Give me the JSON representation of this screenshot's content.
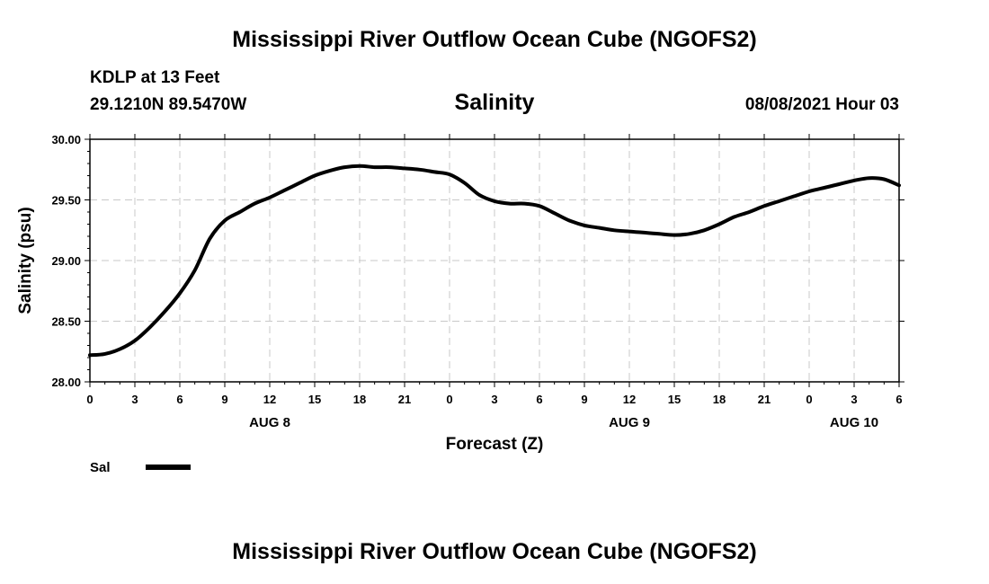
{
  "header": {
    "title": "Mississippi River Outflow Ocean Cube (NGOFS2)",
    "station": "KDLP at 13 Feet",
    "coords": "29.1210N  89.5470W",
    "variable": "Salinity",
    "datetime": "08/08/2021 Hour 03"
  },
  "footer": {
    "title": "Mississippi River Outflow Ocean Cube (NGOFS2)"
  },
  "chart_data": {
    "type": "line",
    "title": "Salinity",
    "xlabel": "Forecast (Z)",
    "ylabel": "Salinity (psu)",
    "ylim": [
      28.0,
      30.0
    ],
    "xlim": [
      0,
      54
    ],
    "y_ticks": [
      "28.00",
      "28.50",
      "29.00",
      "29.50",
      "30.00"
    ],
    "x_ticks": [
      "0",
      "3",
      "6",
      "9",
      "12",
      "15",
      "18",
      "21",
      "0",
      "3",
      "6",
      "9",
      "12",
      "15",
      "18",
      "21",
      "0",
      "3",
      "6"
    ],
    "date_labels": [
      {
        "label": "AUG 8",
        "hour": 12
      },
      {
        "label": "AUG 9",
        "hour": 36
      },
      {
        "label": "AUG 10",
        "hour": 51
      }
    ],
    "grid": true,
    "legend": {
      "placement": "bottom-left",
      "entries": [
        "Sal"
      ]
    },
    "series": [
      {
        "name": "Sal",
        "color": "#000000",
        "x": [
          0,
          1,
          2,
          3,
          4,
          5,
          6,
          7,
          8,
          9,
          10,
          11,
          12,
          13,
          14,
          15,
          16,
          17,
          18,
          19,
          20,
          21,
          22,
          23,
          24,
          25,
          26,
          27,
          28,
          29,
          30,
          31,
          32,
          33,
          34,
          35,
          36,
          37,
          38,
          39,
          40,
          41,
          42,
          43,
          44,
          45,
          46,
          47,
          48,
          49,
          50,
          51,
          52,
          53,
          54
        ],
        "values": [
          28.22,
          28.23,
          28.27,
          28.34,
          28.45,
          28.58,
          28.73,
          28.92,
          29.18,
          29.33,
          29.4,
          29.47,
          29.52,
          29.58,
          29.64,
          29.7,
          29.74,
          29.77,
          29.78,
          29.77,
          29.77,
          29.76,
          29.75,
          29.73,
          29.71,
          29.64,
          29.54,
          29.49,
          29.47,
          29.47,
          29.45,
          29.39,
          29.33,
          29.29,
          29.27,
          29.25,
          29.24,
          29.23,
          29.22,
          29.21,
          29.22,
          29.25,
          29.3,
          29.36,
          29.4,
          29.45,
          29.49,
          29.53,
          29.57,
          29.6,
          29.63,
          29.66,
          29.68,
          29.67,
          29.62
        ]
      }
    ]
  }
}
